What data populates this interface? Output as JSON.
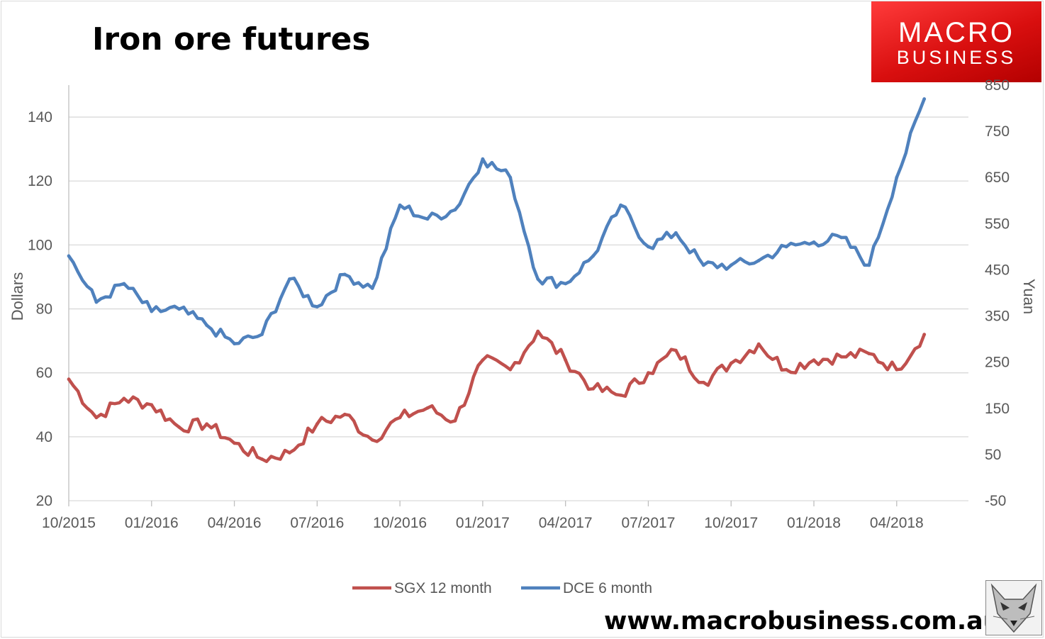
{
  "chart_data": {
    "type": "line",
    "title": "Iron ore futures",
    "ylabel": "Dollars",
    "y2label": "Yuan",
    "ylim": [
      20,
      150
    ],
    "y2lim": [
      -50,
      850
    ],
    "yticks": [
      20,
      40,
      60,
      80,
      100,
      120,
      140
    ],
    "y2ticks": [
      -50,
      50,
      150,
      250,
      350,
      450,
      550,
      650,
      750,
      850
    ],
    "x_ticklabels": [
      "10/2015",
      "01/2016",
      "04/2016",
      "07/2016",
      "10/2016",
      "01/2017",
      "04/2017",
      "07/2017",
      "10/2017",
      "01/2018",
      "04/2018"
    ],
    "grid": true,
    "legend_position": "bottom",
    "series": [
      {
        "name": "SGX 12 month",
        "axis": "left",
        "color": "#c0504d",
        "x": [
          "2015-10",
          "2015-11",
          "2015-12",
          "2016-01",
          "2016-02",
          "2016-03",
          "2016-04",
          "2016-05",
          "2016-06",
          "2016-07",
          "2016-08",
          "2016-09",
          "2016-10",
          "2016-11",
          "2016-12",
          "2017-01",
          "2017-02",
          "2017-03",
          "2017-04",
          "2017-05",
          "2017-06",
          "2017-07",
          "2017-08",
          "2017-09",
          "2017-10",
          "2017-11",
          "2017-12",
          "2018-01",
          "2018-02",
          "2018-03",
          "2018-04",
          "2018-05"
        ],
        "values": [
          58,
          46,
          52,
          50,
          43,
          44,
          38,
          33,
          35,
          44,
          47,
          39,
          46,
          49,
          45,
          64,
          61,
          73,
          64,
          55,
          53,
          60,
          67,
          57,
          63,
          69,
          61,
          64,
          65,
          66,
          61,
          72
        ]
      },
      {
        "name": "DCE 6 month",
        "axis": "right",
        "color": "#4f81bd",
        "x": [
          "2015-10",
          "2015-11",
          "2015-12",
          "2016-01",
          "2016-02",
          "2016-03",
          "2016-04",
          "2016-05",
          "2016-06",
          "2016-07",
          "2016-08",
          "2016-09",
          "2016-10",
          "2016-11",
          "2016-12",
          "2017-01",
          "2017-02",
          "2017-03",
          "2017-04",
          "2017-05",
          "2017-06",
          "2017-07",
          "2017-08",
          "2017-09",
          "2017-10",
          "2017-11",
          "2017-12",
          "2018-01",
          "2018-02",
          "2018-03",
          "2018-04",
          "2018-05"
        ],
        "values": [
          480,
          380,
          420,
          360,
          365,
          330,
          290,
          310,
          430,
          370,
          440,
          410,
          590,
          560,
          580,
          690,
          650,
          430,
          420,
          480,
          590,
          500,
          530,
          460,
          460,
          470,
          500,
          510,
          520,
          460,
          650,
          820
        ]
      }
    ]
  },
  "brand": {
    "line1": "MACRO",
    "line2": "BUSINESS"
  },
  "footer": {
    "url": "www.macrobusiness.com.au"
  },
  "fox_icon": "fox-head-icon"
}
